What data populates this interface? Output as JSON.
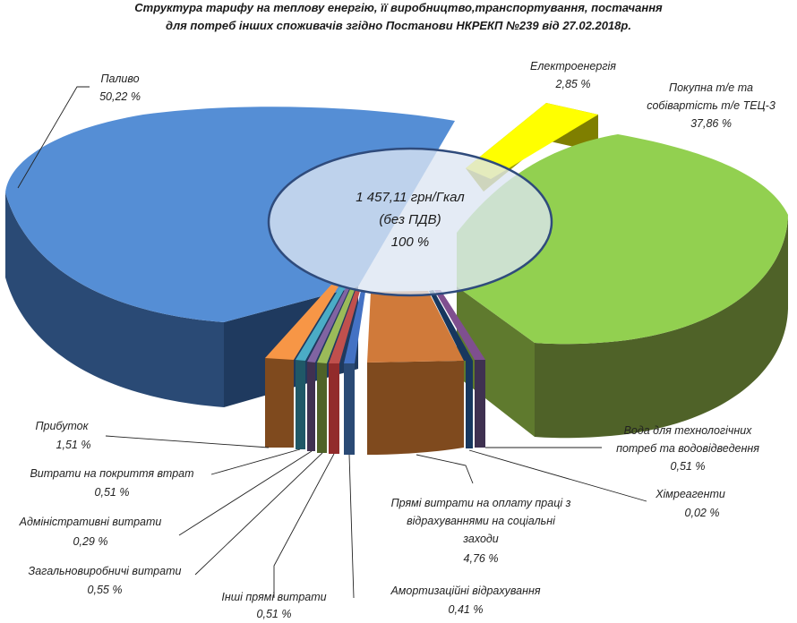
{
  "chart_data": {
    "type": "pie",
    "title_line1": "Структура тарифу на теплову енергію, її виробництво,транспортування, постачання",
    "title_line2": "для потреб інших споживачів згідно Постанови НКРЕКП №239 від 27.02.2018р.",
    "center": {
      "line1": "1 457,11 грн/Гкал",
      "line2": "(без ПДВ)",
      "line3": "100 %"
    },
    "slices": [
      {
        "name": "Паливо",
        "value": "50,22 %",
        "pct": 50.22,
        "color": "#558ED5"
      },
      {
        "name": "Електроенергія",
        "value": "2,85 %",
        "pct": 2.85,
        "color": "#FFFF00"
      },
      {
        "name": "Покупна т/е та собівартість т/е ТЕЦ-3",
        "value": "37,86 %",
        "pct": 37.86,
        "color": "#92D050"
      },
      {
        "name": "Вода для технологічних потреб  та водовідведення",
        "value": "0,51 %",
        "pct": 0.51,
        "color": "#7F4F8F"
      },
      {
        "name": "Хімреагенти",
        "value": "0,02 %",
        "pct": 0.02,
        "color": "#17375E"
      },
      {
        "name": "Прямі витрати на оплату праці з відрахуваннями на соціальні заходи",
        "value": "4,76 %",
        "pct": 4.76,
        "color": "#D07A3A"
      },
      {
        "name": "Амортизаційні відрахування",
        "value": "0,41 %",
        "pct": 0.41,
        "color": "#4472C4"
      },
      {
        "name": "Інші прямі витрати",
        "value": "0,51 %",
        "pct": 0.51,
        "color": "#C0504D"
      },
      {
        "name": "Загальновиробничі витрати",
        "value": "0,55 %",
        "pct": 0.55,
        "color": "#9BBB59"
      },
      {
        "name": "Адміністративні витрати",
        "value": "0,29 %",
        "pct": 0.29,
        "color": "#8064A2"
      },
      {
        "name": "Витрати на покриття втрат",
        "value": "0,51 %",
        "pct": 0.51,
        "color": "#4BACC6"
      },
      {
        "name": "Прибуток",
        "value": "1,51 %",
        "pct": 1.51,
        "color": "#F79646"
      }
    ],
    "labels": {
      "fuel_name": "Паливо",
      "fuel_value": "50,22 %",
      "electro_name": "Електроенергія",
      "electro_value": "2,85 %",
      "purchase_name_1": "Покупна т/е та",
      "purchase_name_2": "собівартість т/е ТЕЦ-3",
      "purchase_value": "37,86 %",
      "water_name_1": "Вода для технологічних",
      "water_name_2": "потреб  та водовідведення",
      "water_value": "0,51 %",
      "chem_name": "Хімреагенти",
      "chem_value": "0,02 %",
      "labor_name_1": "Прямі витрати на оплату праці з",
      "labor_name_2": "відрахуваннями на соціальні",
      "labor_name_3": "заходи",
      "labor_value": "4,76 %",
      "amort_name": "Амортизаційні відрахування",
      "amort_value": "0,41 %",
      "other_name": "Інші прямі витрати",
      "other_value": "0,51 %",
      "general_name": "Загальновиробничі витрати",
      "general_value": "0,55 %",
      "admin_name": "Адміністративні витрати",
      "admin_value": "0,29 %",
      "losses_name": "Витрати на покриття втрат",
      "losses_value": "0,51 %",
      "profit_name": "Прибуток",
      "profit_value": "1,51 %"
    }
  }
}
